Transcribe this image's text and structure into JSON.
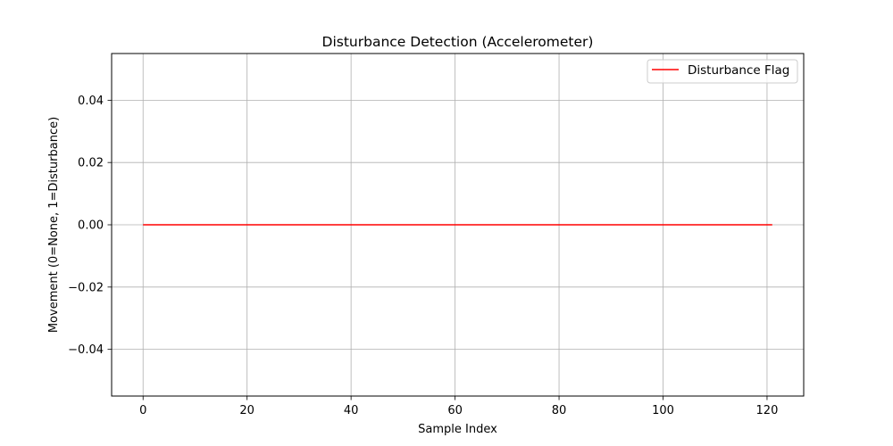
{
  "chart_data": {
    "type": "line",
    "title": "Disturbance Detection (Accelerometer)",
    "xlabel": "Sample Index",
    "ylabel": "Movement (0=None, 1=Disturbance)",
    "xlim": [
      -6.05,
      127.05
    ],
    "ylim": [
      -0.055,
      0.055
    ],
    "xticks": [
      0,
      20,
      40,
      60,
      80,
      100,
      120
    ],
    "xtick_labels": [
      "0",
      "20",
      "40",
      "60",
      "80",
      "100",
      "120"
    ],
    "yticks": [
      0.04,
      0.02,
      0.0,
      -0.02,
      -0.04
    ],
    "ytick_labels": [
      "0.04",
      "0.02",
      "0.00",
      "−0.02",
      "−0.04"
    ],
    "grid": true,
    "legend_position": "top-right",
    "series": [
      {
        "name": "Disturbance Flag",
        "color": "#ff0000",
        "x": [
          0,
          121
        ],
        "values": [
          0,
          0
        ]
      }
    ]
  }
}
